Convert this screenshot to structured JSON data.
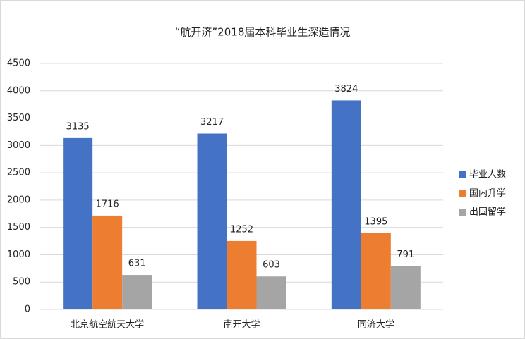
{
  "chart_data": {
    "type": "bar",
    "title": "“航开济”2018届本科毕业生深造情况",
    "categories": [
      "北京航空航天大学",
      "南开大学",
      "同济大学"
    ],
    "series": [
      {
        "name": "毕业人数",
        "color": "#4472c4",
        "values": [
          3135,
          3217,
          3824
        ]
      },
      {
        "name": "国内升学",
        "color": "#ed7d31",
        "values": [
          1716,
          1252,
          1395
        ]
      },
      {
        "name": "出国留学",
        "color": "#a5a5a5",
        "values": [
          631,
          603,
          791
        ]
      }
    ],
    "ylim": [
      0,
      4500
    ],
    "yticks": [
      0,
      500,
      1000,
      1500,
      2000,
      2500,
      3000,
      3500,
      4000,
      4500
    ],
    "grid": true,
    "legend": "right",
    "data_labels": true
  }
}
